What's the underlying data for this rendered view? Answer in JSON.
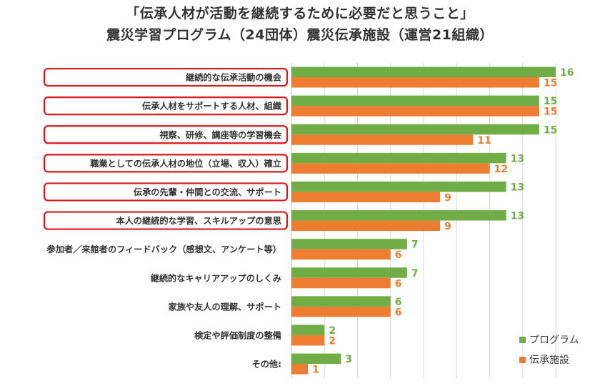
{
  "title_line1": "「伝承人材が活動を継続するために必要だと思うこと」",
  "title_line2": "震災学習プログラム（24団体）震災伝承施設（運営21組織）",
  "colors": {
    "program": "#70ad47",
    "facility": "#ed7d31",
    "highlight_box": "#d9181d",
    "grid": "#d9d9d9",
    "label": "#333333"
  },
  "chart_data": {
    "type": "bar",
    "orientation": "horizontal",
    "categories": [
      "継続的な伝承活動の機会",
      "伝承人材をサポートする人材、組織",
      "視察、研修、講座等の学習機会",
      "職業としての伝承人材の地位（立場、収入）確立",
      "伝承の先輩・仲間との交流、サポート",
      "本人の継続的な学習、スキルアップの意思",
      "参加者／来館者のフィードバック（感想文、アンケート等）",
      "継続的なキャリアアップのしくみ",
      "家族や友人の理解、サポート",
      "検定や評価制度の整備",
      "その他:"
    ],
    "highlighted": [
      true,
      true,
      true,
      true,
      true,
      true,
      false,
      false,
      false,
      false,
      false
    ],
    "series": [
      {
        "name": "プログラム",
        "values": [
          16,
          15,
          15,
          13,
          13,
          13,
          7,
          7,
          6,
          2,
          3
        ]
      },
      {
        "name": "伝承施設",
        "values": [
          15,
          15,
          11,
          12,
          9,
          9,
          6,
          6,
          6,
          2,
          1
        ]
      }
    ],
    "xlim": [
      0,
      16
    ],
    "grid": true,
    "data_labels": true,
    "legend": "bottom-right"
  }
}
